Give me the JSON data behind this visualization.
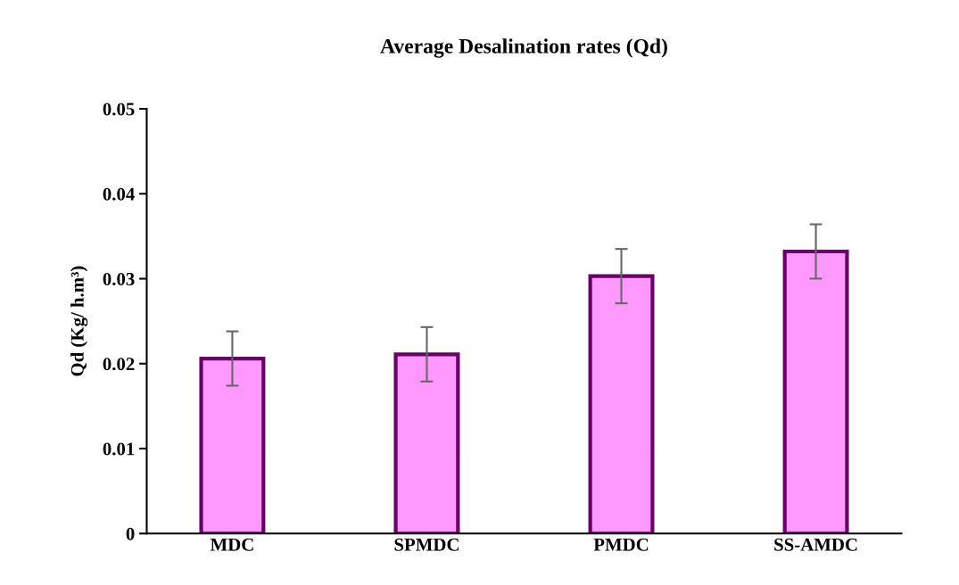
{
  "chart_data": {
    "type": "bar",
    "title": "Average Desalination rates (Qd)",
    "ylabel": "Qd (Kg/ h.m³)",
    "categories": [
      "MDC",
      "SPMDC",
      "PMDC",
      "SS-AMDC"
    ],
    "values": [
      0.0206,
      0.0211,
      0.0303,
      0.0332
    ],
    "errors": [
      0.0032,
      0.0032,
      0.0032,
      0.0032
    ],
    "color": "#ff99ff",
    "ylim": [
      0,
      0.05
    ],
    "yticks": [
      0,
      0.01,
      0.02,
      0.03,
      0.04,
      0.05
    ],
    "grid": false,
    "legend": false
  }
}
